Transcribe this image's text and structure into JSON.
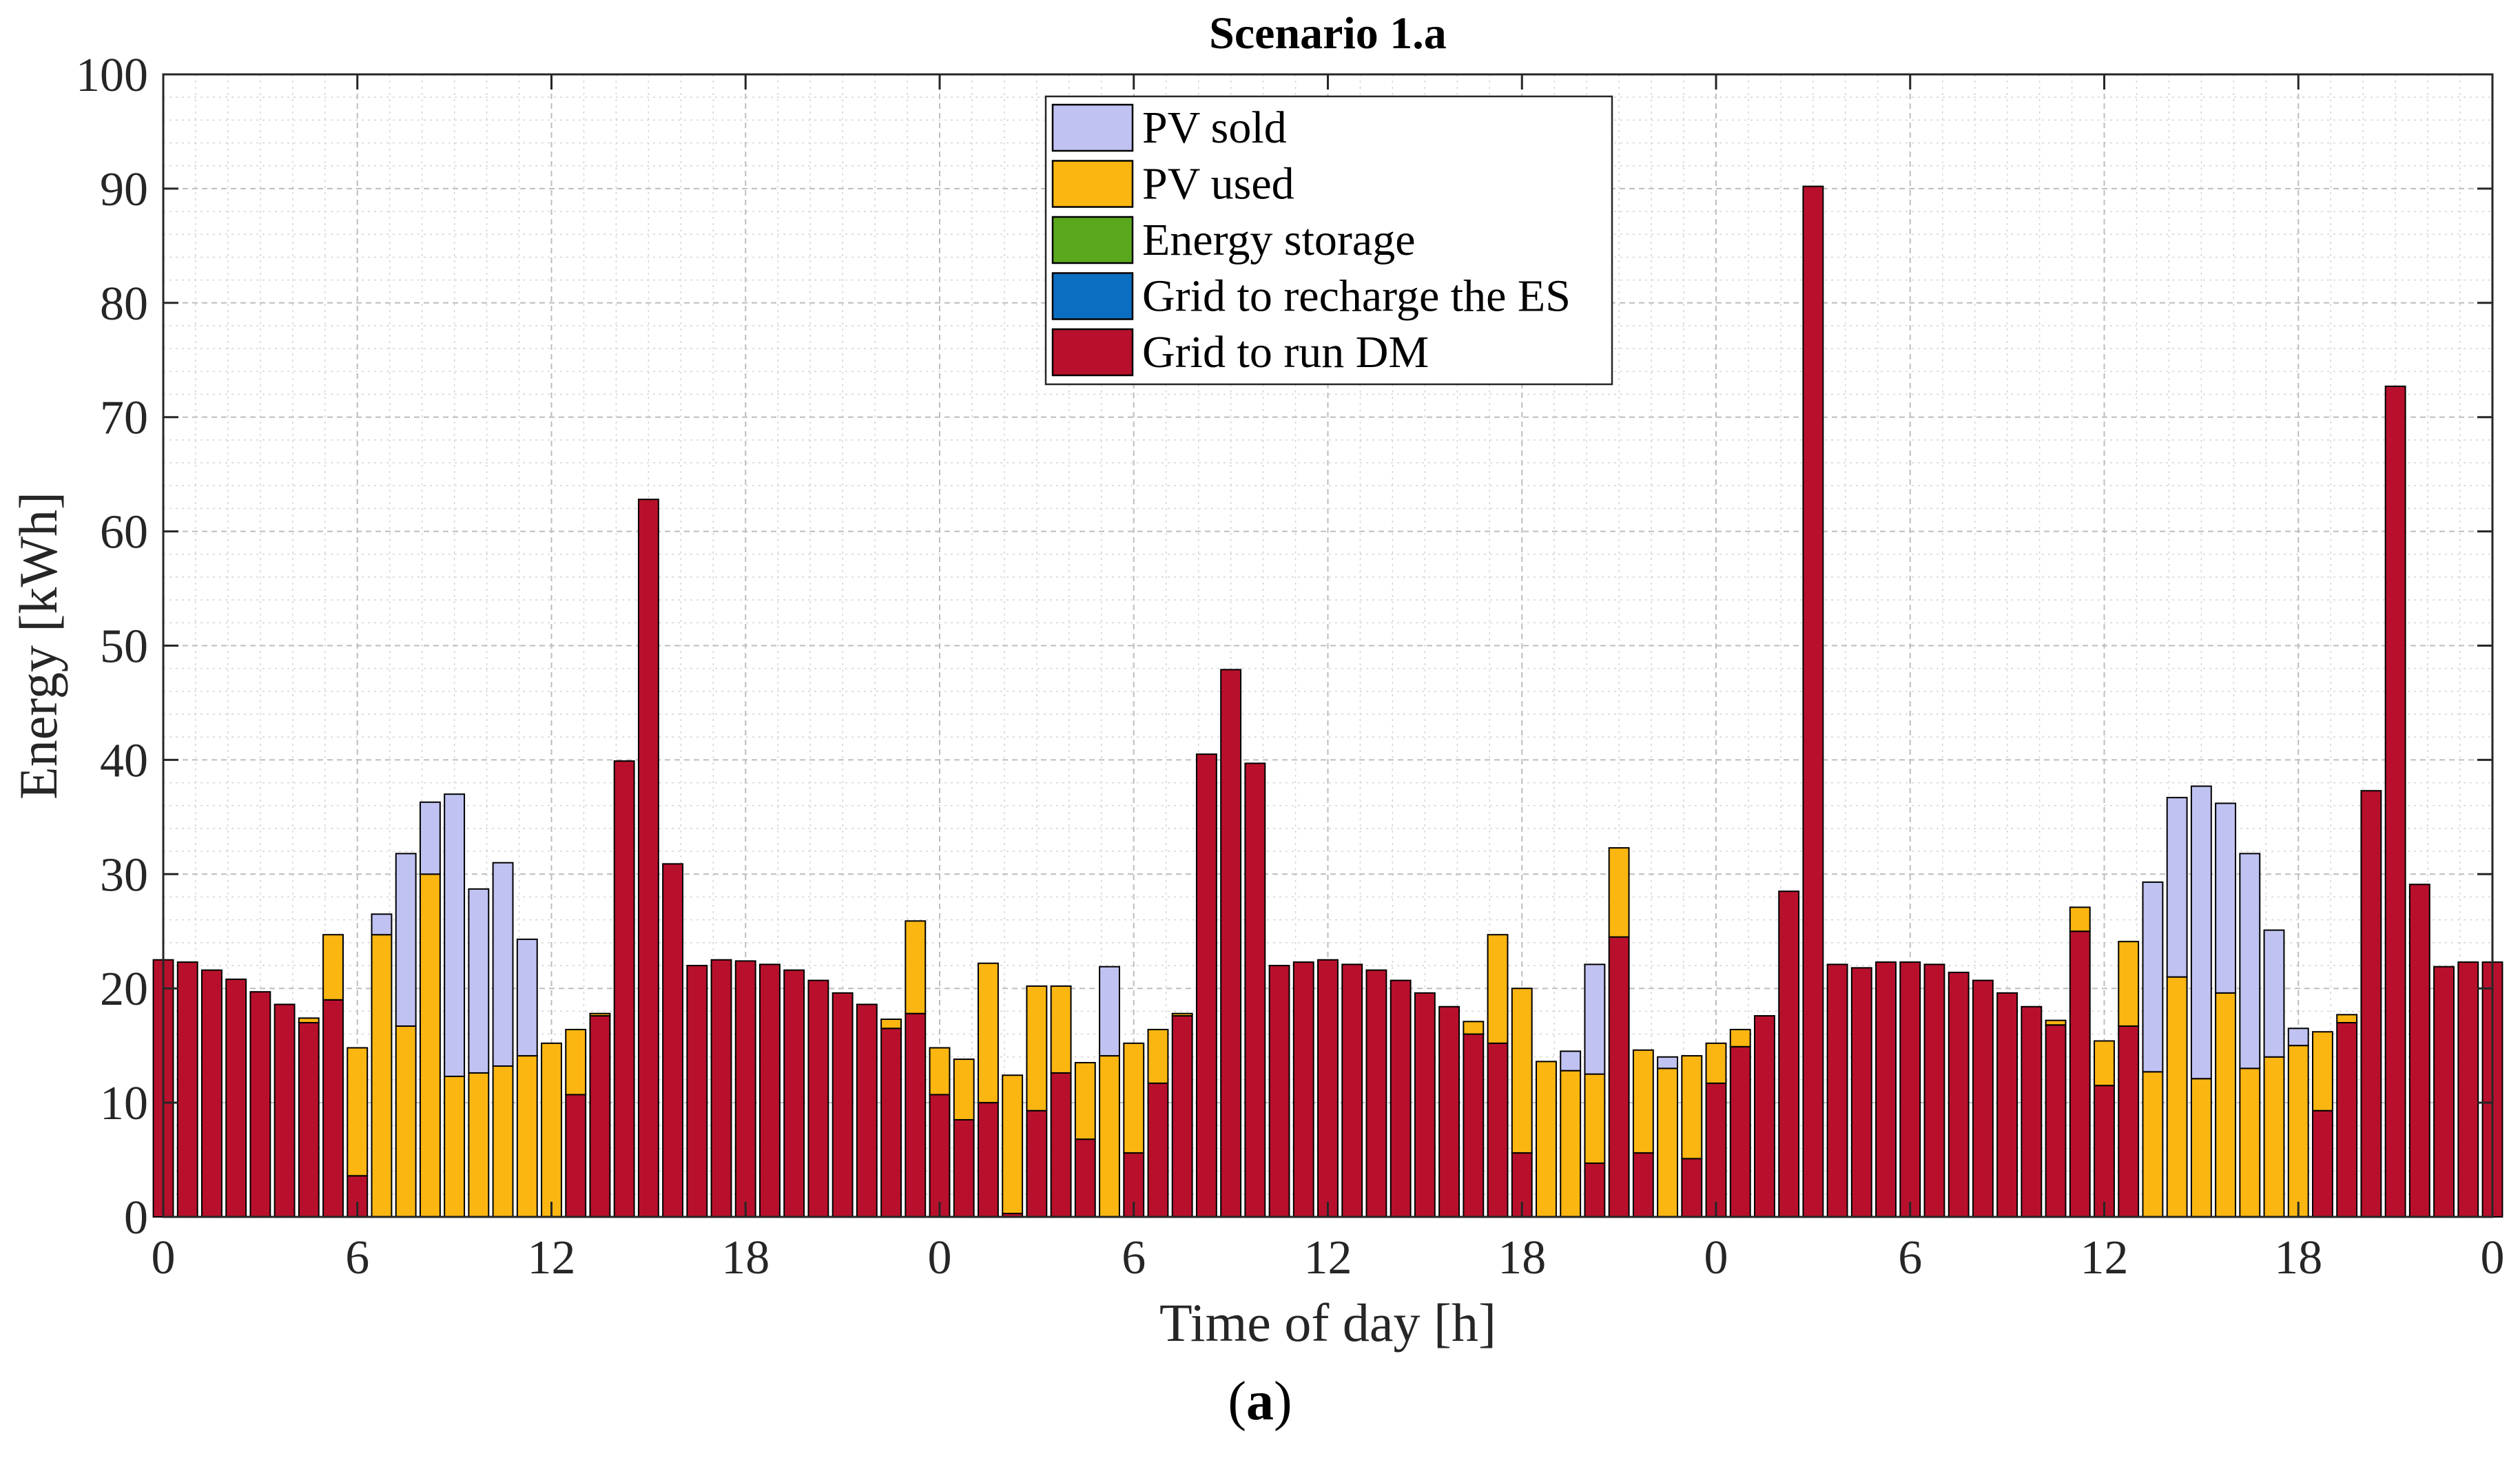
{
  "chart_data": {
    "type": "bar",
    "stacked": true,
    "title": "Scenario 1.a",
    "xlabel": "Time of day [h]",
    "ylabel": "Energy [kWh]",
    "ylim": [
      0,
      100
    ],
    "yticks": [
      0,
      10,
      20,
      30,
      40,
      50,
      60,
      70,
      80,
      90,
      100
    ],
    "xlim": [
      0,
      72
    ],
    "xtick_positions": [
      0,
      6,
      12,
      18,
      24,
      30,
      36,
      42,
      48,
      54,
      60,
      66,
      72
    ],
    "xtick_labels": [
      "0",
      "6",
      "12",
      "18",
      "0",
      "6",
      "12",
      "18",
      "0",
      "6",
      "12",
      "18",
      "0"
    ],
    "bar_interval_h": 0.75,
    "grid": true,
    "legend_position": "top-center",
    "series": [
      {
        "name": "Grid to run DM",
        "color": "#b8102c",
        "values": [
          22.5,
          22.3,
          21.6,
          20.8,
          19.7,
          18.6,
          17.0,
          19.0,
          3.6,
          0,
          0,
          0,
          0,
          0,
          0,
          0,
          0,
          10.7,
          17.6,
          39.9,
          62.8,
          30.9,
          22.0,
          22.5,
          22.4,
          22.1,
          21.6,
          20.7,
          19.6,
          18.6,
          16.5,
          17.8,
          10.7,
          8.5,
          10.0,
          0.3,
          9.3,
          12.6,
          6.8,
          0,
          5.6,
          11.7,
          17.6,
          40.5,
          47.9,
          39.7,
          22.0,
          22.3,
          22.5,
          22.1,
          21.6,
          20.7,
          19.6,
          18.4,
          16.0,
          15.2,
          5.6,
          0,
          0,
          4.7,
          24.5,
          5.6,
          0,
          5.1,
          11.7,
          14.9,
          17.6,
          28.5,
          90.2,
          22.1,
          21.8,
          22.3,
          22.3,
          22.1,
          21.4,
          20.7,
          19.6,
          18.4,
          16.8,
          25.0,
          11.5,
          16.7,
          0,
          0,
          0,
          0,
          0,
          0,
          0,
          9.3,
          17.0,
          37.3,
          72.7,
          29.1,
          21.9,
          22.3,
          22.3
        ]
      },
      {
        "name": "Energy storage",
        "color": "#5aa81e",
        "values": [
          0,
          0,
          0,
          0,
          0,
          0,
          0,
          0,
          0,
          0,
          0,
          0,
          0,
          0,
          0,
          0,
          0,
          0,
          0,
          0,
          0,
          0,
          0,
          0,
          0,
          0,
          0,
          0,
          0,
          0,
          0,
          0,
          0,
          0,
          0,
          0,
          0,
          0,
          0,
          0,
          0,
          0,
          0,
          0,
          0,
          0,
          0,
          0,
          0,
          0,
          0,
          0,
          0,
          0,
          0,
          0,
          0,
          0,
          0,
          0,
          0,
          0,
          0,
          0,
          0,
          0,
          0,
          0,
          0,
          0,
          0,
          0,
          0,
          0,
          0,
          0,
          0,
          0,
          0,
          0,
          0,
          0,
          0,
          0,
          0,
          0,
          0,
          0,
          0,
          0,
          0,
          0,
          0,
          0,
          0,
          0,
          0
        ]
      },
      {
        "name": "Grid to recharge the ES",
        "color": "#0c6ec0",
        "values": [
          0,
          0,
          0,
          0,
          0,
          0,
          0,
          0,
          0,
          0,
          0,
          0,
          0,
          0,
          0,
          0,
          0,
          0,
          0,
          0,
          0,
          0,
          0,
          0,
          0,
          0,
          0,
          0,
          0,
          0,
          0,
          0,
          0,
          0,
          0,
          0,
          0,
          0,
          0,
          0,
          0,
          0,
          0,
          0,
          0,
          0,
          0,
          0,
          0,
          0,
          0,
          0,
          0,
          0,
          0,
          0,
          0,
          0,
          0,
          0,
          0,
          0,
          0,
          0,
          0,
          0,
          0,
          0,
          0,
          0,
          0,
          0,
          0,
          0,
          0,
          0,
          0,
          0,
          0,
          0,
          0,
          0,
          0,
          0,
          0,
          0,
          0,
          0,
          0,
          0,
          0,
          0,
          0,
          0,
          0,
          0,
          0
        ]
      },
      {
        "name": "PV used",
        "color": "#fbb611",
        "values": [
          0,
          0,
          0,
          0,
          0,
          0,
          0.4,
          5.7,
          11.2,
          24.7,
          16.7,
          30.0,
          12.3,
          12.6,
          13.2,
          14.1,
          15.2,
          5.7,
          0.2,
          0,
          0,
          0,
          0,
          0,
          0,
          0,
          0,
          0,
          0,
          0,
          0.8,
          8.1,
          4.1,
          5.3,
          12.2,
          12.1,
          10.9,
          7.6,
          6.7,
          14.1,
          9.6,
          4.7,
          0.2,
          0,
          0,
          0,
          0,
          0,
          0,
          0,
          0,
          0,
          0,
          0,
          1.1,
          9.5,
          14.4,
          13.6,
          12.8,
          7.8,
          7.8,
          9.0,
          13.0,
          9.0,
          3.5,
          1.5,
          0,
          0,
          0,
          0,
          0,
          0,
          0,
          0,
          0,
          0,
          0,
          0,
          0.4,
          2.1,
          3.9,
          7.4,
          12.7,
          21.0,
          12.1,
          19.6,
          13.0,
          14.0,
          15.0,
          6.9,
          0.7,
          0,
          0,
          0,
          0,
          0,
          0
        ]
      },
      {
        "name": "PV sold",
        "color": "#c0c2f2",
        "values": [
          0,
          0,
          0,
          0,
          0,
          0,
          0,
          0,
          0,
          1.8,
          15.1,
          6.3,
          24.7,
          16.1,
          17.8,
          10.2,
          0,
          0,
          0,
          0,
          0,
          0,
          0,
          0,
          0,
          0,
          0,
          0,
          0,
          0,
          0,
          0,
          0,
          0,
          0,
          0,
          0,
          0,
          0,
          7.8,
          0,
          0,
          0,
          0,
          0,
          0,
          0,
          0,
          0,
          0,
          0,
          0,
          0,
          0,
          0,
          0,
          0,
          0,
          1.7,
          9.6,
          0,
          0,
          1.0,
          0,
          0,
          0,
          0,
          0,
          0,
          0,
          0,
          0,
          0,
          0,
          0,
          0,
          0,
          0,
          0,
          0,
          0,
          0,
          16.6,
          15.7,
          25.6,
          16.6,
          18.8,
          11.1,
          1.5,
          0,
          0,
          0,
          0,
          0,
          0,
          0,
          0
        ]
      }
    ],
    "legend_order": [
      "PV sold",
      "PV used",
      "Energy storage",
      "Grid to recharge the ES",
      "Grid to run DM"
    ]
  },
  "caption": {
    "open": "(",
    "letter": "a",
    "close": ")"
  }
}
